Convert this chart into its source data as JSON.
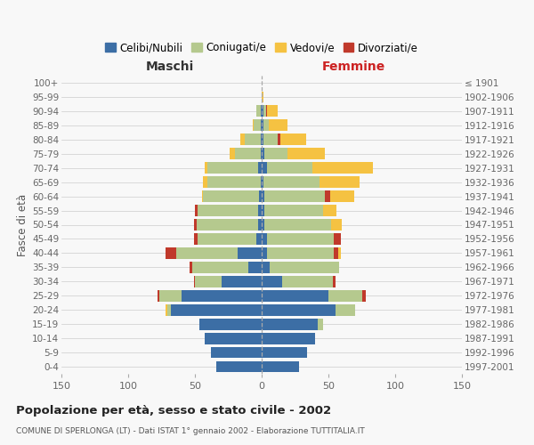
{
  "age_groups": [
    "0-4",
    "5-9",
    "10-14",
    "15-19",
    "20-24",
    "25-29",
    "30-34",
    "35-39",
    "40-44",
    "45-49",
    "50-54",
    "55-59",
    "60-64",
    "65-69",
    "70-74",
    "75-79",
    "80-84",
    "85-89",
    "90-94",
    "95-99",
    "100+"
  ],
  "birth_years": [
    "1997-2001",
    "1992-1996",
    "1987-1991",
    "1982-1986",
    "1977-1981",
    "1972-1976",
    "1967-1971",
    "1962-1966",
    "1957-1961",
    "1952-1956",
    "1947-1951",
    "1942-1946",
    "1937-1941",
    "1932-1936",
    "1927-1931",
    "1922-1926",
    "1917-1921",
    "1912-1916",
    "1907-1911",
    "1902-1906",
    "≤ 1901"
  ],
  "males_celibi": [
    34,
    38,
    43,
    47,
    68,
    60,
    30,
    10,
    18,
    4,
    3,
    3,
    2,
    1,
    3,
    1,
    1,
    1,
    1,
    0,
    0
  ],
  "males_coniugati": [
    0,
    0,
    0,
    0,
    3,
    17,
    20,
    42,
    46,
    44,
    46,
    45,
    42,
    40,
    38,
    19,
    12,
    5,
    3,
    0,
    0
  ],
  "males_vedovi": [
    0,
    0,
    0,
    0,
    1,
    0,
    0,
    0,
    0,
    0,
    0,
    0,
    1,
    3,
    2,
    4,
    3,
    1,
    0,
    0,
    0
  ],
  "males_divorziati": [
    0,
    0,
    0,
    0,
    0,
    1,
    1,
    2,
    8,
    3,
    2,
    2,
    0,
    0,
    0,
    0,
    0,
    0,
    0,
    0,
    0
  ],
  "females_nubili": [
    28,
    34,
    40,
    42,
    55,
    50,
    15,
    6,
    4,
    4,
    2,
    2,
    2,
    1,
    4,
    2,
    1,
    1,
    1,
    0,
    0
  ],
  "females_coniugate": [
    0,
    0,
    0,
    4,
    15,
    25,
    38,
    52,
    50,
    50,
    50,
    44,
    45,
    42,
    34,
    17,
    11,
    4,
    2,
    0,
    0
  ],
  "females_vedove": [
    0,
    0,
    0,
    0,
    0,
    0,
    0,
    0,
    2,
    0,
    8,
    10,
    18,
    30,
    45,
    28,
    19,
    14,
    8,
    1,
    0
  ],
  "females_divorziate": [
    0,
    0,
    0,
    0,
    0,
    3,
    2,
    0,
    3,
    5,
    0,
    0,
    4,
    0,
    0,
    0,
    2,
    0,
    1,
    0,
    0
  ],
  "color_celibi": "#3c6ea5",
  "color_coniugati": "#b5c98e",
  "color_vedovi": "#f5c242",
  "color_divorziati": "#c0392b",
  "title": "Popolazione per età, sesso e stato civile - 2002",
  "subtitle": "COMUNE DI SPERLONGA (LT) - Dati ISTAT 1° gennaio 2002 - Elaborazione TUTTITALIA.IT",
  "label_maschi": "Maschi",
  "label_femmine": "Femmine",
  "ylabel_left": "Fasce di età",
  "legend_labels": [
    "Celibi/Nubili",
    "Coniugati/e",
    "Vedovi/e",
    "Divorziati/e"
  ],
  "xlim": 150,
  "bg_color": "#f8f8f8",
  "grid_color": "#cccccc",
  "femmine_color": "#cc2222",
  "maschi_color": "#333333"
}
